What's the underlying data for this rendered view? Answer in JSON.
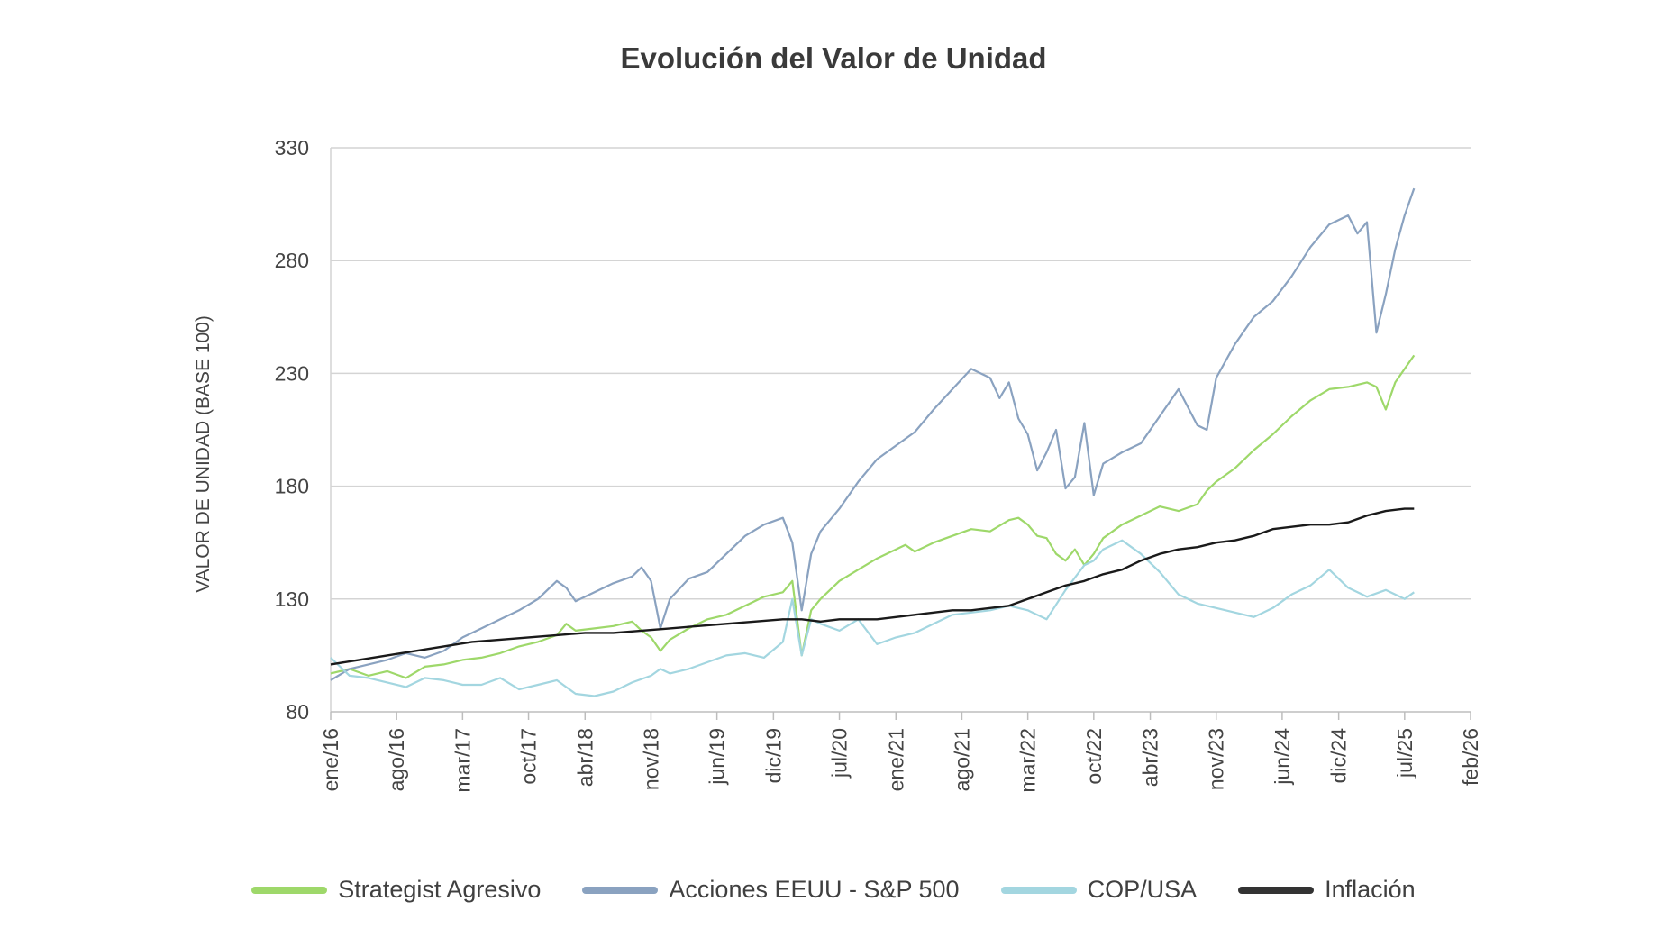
{
  "chart_data": {
    "type": "line",
    "title": "Evolución del Valor de Unidad",
    "xlabel": "",
    "ylabel": "VALOR DE UNIDAD (BASE 100)",
    "ylim": [
      80,
      330
    ],
    "yticks": [
      "80",
      "130",
      "180",
      "230",
      "280",
      "330"
    ],
    "xlim_months": [
      0,
      121
    ],
    "xticks": [
      {
        "label": "ene/16",
        "month": 0
      },
      {
        "label": "ago/16",
        "month": 7
      },
      {
        "label": "mar/17",
        "month": 14
      },
      {
        "label": "oct/17",
        "month": 21
      },
      {
        "label": "abr/18",
        "month": 27
      },
      {
        "label": "nov/18",
        "month": 34
      },
      {
        "label": "jun/19",
        "month": 41
      },
      {
        "label": "dic/19",
        "month": 47
      },
      {
        "label": "jul/20",
        "month": 54
      },
      {
        "label": "ene/21",
        "month": 60
      },
      {
        "label": "ago/21",
        "month": 67
      },
      {
        "label": "mar/22",
        "month": 74
      },
      {
        "label": "oct/22",
        "month": 81
      },
      {
        "label": "abr/23",
        "month": 87
      },
      {
        "label": "nov/23",
        "month": 94
      },
      {
        "label": "jun/24",
        "month": 101
      },
      {
        "label": "dic/24",
        "month": 107
      },
      {
        "label": "jul/25",
        "month": 114
      },
      {
        "label": "feb/26",
        "month": 121
      }
    ],
    "grid": true,
    "legend_position": "bottom",
    "series": [
      {
        "name": "Strategist Agresivo",
        "color": "#9ed86a",
        "x": [
          0,
          2,
          4,
          6,
          8,
          10,
          12,
          14,
          16,
          18,
          20,
          22,
          24,
          25,
          26,
          28,
          30,
          32,
          33,
          34,
          35,
          36,
          38,
          40,
          42,
          44,
          46,
          48,
          49,
          50,
          51,
          52,
          54,
          56,
          58,
          60,
          61,
          62,
          64,
          66,
          68,
          70,
          72,
          73,
          74,
          75,
          76,
          77,
          78,
          79,
          80,
          81,
          82,
          84,
          86,
          88,
          90,
          92,
          93,
          94,
          96,
          98,
          100,
          102,
          104,
          106,
          108,
          110,
          111,
          112,
          113,
          114,
          115
        ],
        "y": [
          97,
          99,
          96,
          98,
          95,
          100,
          101,
          103,
          104,
          106,
          109,
          111,
          114,
          119,
          116,
          117,
          118,
          120,
          116,
          113,
          107,
          112,
          117,
          121,
          123,
          127,
          131,
          133,
          138,
          105,
          125,
          130,
          138,
          143,
          148,
          152,
          154,
          151,
          155,
          158,
          161,
          160,
          165,
          166,
          163,
          158,
          157,
          150,
          147,
          152,
          145,
          150,
          157,
          163,
          167,
          171,
          169,
          172,
          178,
          182,
          188,
          196,
          203,
          211,
          218,
          223,
          224,
          226,
          224,
          214,
          226,
          232,
          238
        ]
      },
      {
        "name": "Acciones EEUU - S&P 500",
        "color": "#8aa2c0",
        "x": [
          0,
          2,
          4,
          6,
          8,
          10,
          12,
          14,
          16,
          18,
          20,
          22,
          24,
          25,
          26,
          28,
          30,
          32,
          33,
          34,
          35,
          36,
          38,
          40,
          42,
          44,
          46,
          48,
          49,
          50,
          51,
          52,
          54,
          56,
          58,
          60,
          62,
          64,
          66,
          68,
          70,
          71,
          72,
          73,
          74,
          75,
          76,
          77,
          78,
          79,
          80,
          81,
          82,
          84,
          86,
          88,
          90,
          92,
          93,
          94,
          96,
          98,
          100,
          102,
          104,
          106,
          108,
          109,
          110,
          111,
          112,
          113,
          114,
          115
        ],
        "y": [
          94,
          99,
          101,
          103,
          106,
          104,
          107,
          113,
          117,
          121,
          125,
          130,
          138,
          135,
          129,
          133,
          137,
          140,
          144,
          138,
          117,
          130,
          139,
          142,
          150,
          158,
          163,
          166,
          155,
          125,
          150,
          160,
          170,
          182,
          192,
          198,
          204,
          214,
          223,
          232,
          228,
          219,
          226,
          210,
          203,
          187,
          195,
          205,
          179,
          184,
          208,
          176,
          190,
          195,
          199,
          211,
          223,
          207,
          205,
          228,
          243,
          255,
          262,
          273,
          286,
          296,
          300,
          292,
          297,
          248,
          265,
          285,
          300,
          312
        ]
      },
      {
        "name": "COP/USA",
        "color": "#a3d6e0",
        "x": [
          0,
          2,
          4,
          6,
          8,
          10,
          12,
          14,
          16,
          18,
          20,
          22,
          24,
          25,
          26,
          28,
          30,
          32,
          34,
          35,
          36,
          38,
          40,
          42,
          44,
          46,
          48,
          49,
          50,
          51,
          52,
          54,
          56,
          58,
          60,
          62,
          64,
          66,
          68,
          70,
          72,
          74,
          76,
          78,
          80,
          81,
          82,
          84,
          86,
          88,
          90,
          92,
          94,
          96,
          98,
          100,
          102,
          104,
          106,
          108,
          110,
          112,
          114,
          115
        ],
        "y": [
          104,
          96,
          95,
          93,
          91,
          95,
          94,
          92,
          92,
          95,
          90,
          92,
          94,
          91,
          88,
          87,
          89,
          93,
          96,
          99,
          97,
          99,
          102,
          105,
          106,
          104,
          111,
          130,
          105,
          121,
          119,
          116,
          121,
          110,
          113,
          115,
          119,
          123,
          124,
          125,
          127,
          125,
          121,
          134,
          145,
          147,
          152,
          156,
          150,
          142,
          132,
          128,
          126,
          124,
          122,
          126,
          132,
          136,
          143,
          135,
          131,
          134,
          130,
          133
        ]
      },
      {
        "name": "Inflación",
        "color": "#1a1a1a",
        "x": [
          0,
          3,
          6,
          9,
          12,
          15,
          18,
          21,
          24,
          27,
          30,
          33,
          36,
          39,
          42,
          45,
          48,
          50,
          52,
          54,
          56,
          58,
          60,
          62,
          64,
          66,
          68,
          70,
          72,
          74,
          76,
          78,
          80,
          82,
          84,
          86,
          88,
          90,
          92,
          94,
          96,
          98,
          100,
          102,
          104,
          106,
          108,
          110,
          112,
          114,
          115
        ],
        "y": [
          101,
          103,
          105,
          107,
          109,
          111,
          112,
          113,
          114,
          115,
          115,
          116,
          117,
          118,
          119,
          120,
          121,
          121,
          120,
          121,
          121,
          121,
          122,
          123,
          124,
          125,
          125,
          126,
          127,
          130,
          133,
          136,
          138,
          141,
          143,
          147,
          150,
          152,
          153,
          155,
          156,
          158,
          161,
          162,
          163,
          163,
          164,
          167,
          169,
          170,
          170
        ]
      }
    ]
  }
}
